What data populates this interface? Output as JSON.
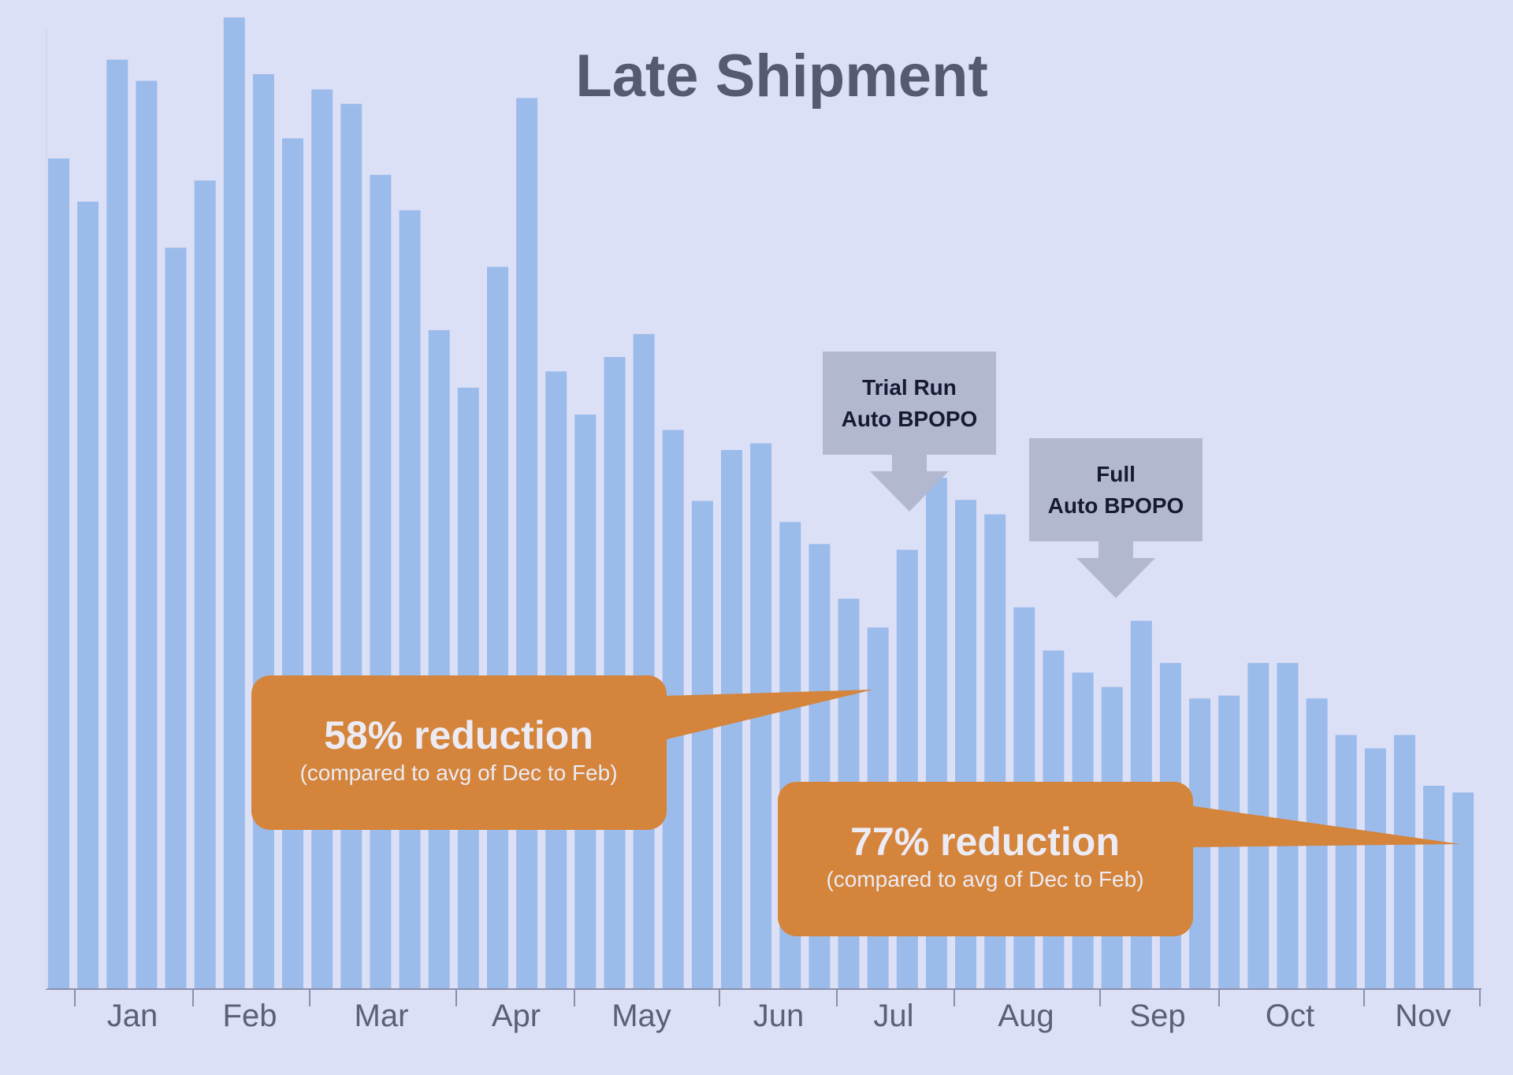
{
  "colors": {
    "background": "#dce0f7",
    "bar": "#9bbbea",
    "title": "#555a73",
    "axis": "#8a8fab",
    "tick_label": "#5b5f78",
    "callout_fill": "#d4843b",
    "callout_text": "#ecebf4",
    "marker_fill": "#b3b8d1",
    "marker_text": "#161a33"
  },
  "chart_data": {
    "type": "bar",
    "title": "Late Shipment",
    "xlabel": "",
    "ylabel": "",
    "ylim": [
      0,
      100
    ],
    "grid": false,
    "legend": "none",
    "value_note": "values estimated as percent of plot height (no y-axis labels shown)",
    "months": [
      "Jan",
      "Feb",
      "Mar",
      "Apr",
      "May",
      "Jun",
      "Jul",
      "Aug",
      "Sep",
      "Oct",
      "Nov"
    ],
    "values": [
      86.6,
      82.1,
      96.9,
      94.7,
      77.3,
      84.3,
      101.3,
      95.4,
      88.7,
      93.8,
      92.3,
      84.9,
      81.2,
      68.7,
      62.7,
      75.3,
      92.9,
      64.4,
      59.9,
      65.9,
      68.3,
      58.3,
      50.9,
      56.2,
      56.9,
      48.7,
      46.4,
      40.7,
      37.7,
      45.8,
      53.3,
      51.0,
      49.5,
      39.8,
      35.3,
      33.0,
      31.5,
      38.4,
      34.0,
      30.3,
      30.6,
      34.0,
      34.0,
      30.3,
      26.5,
      25.1,
      26.5,
      21.2,
      20.5
    ],
    "annotations": [
      {
        "type": "callout",
        "headline": "58% reduction",
        "subtext": "(compared to avg of Dec to Feb)"
      },
      {
        "type": "callout",
        "headline": "77% reduction",
        "subtext": "(compared to avg of Dec to Feb)"
      },
      {
        "type": "marker",
        "lines": [
          "Trial Run",
          "Auto BPOPO"
        ]
      },
      {
        "type": "marker",
        "lines": [
          "Full",
          "Auto BPOPO"
        ]
      }
    ]
  }
}
